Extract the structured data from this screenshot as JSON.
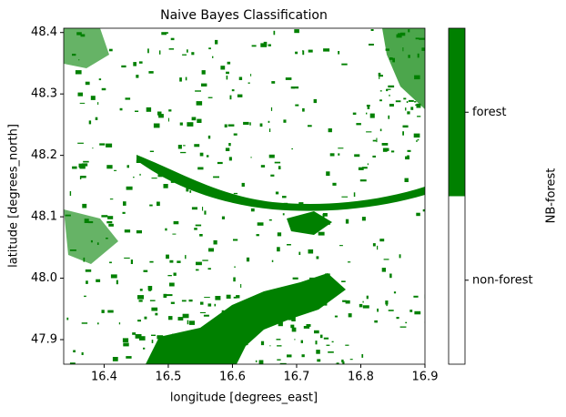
{
  "chart_data": {
    "type": "raster",
    "title": "Naive Bayes Classification",
    "x_label": "longitude [degrees_east]",
    "y_label": "latitude [degrees_north]",
    "xlim": [
      16.337,
      16.9
    ],
    "ylim": [
      47.86,
      48.407
    ],
    "xticks": [
      16.4,
      16.5,
      16.6,
      16.7,
      16.8,
      16.9
    ],
    "yticks": [
      47.9,
      {
        "value": 48.0,
        "label": "48.0"
      },
      48.1,
      48.2,
      48.3,
      48.4
    ],
    "colorbar": {
      "label": "NB-forest",
      "categories": [
        "non-forest",
        "forest"
      ],
      "colors": [
        "#ffffff",
        "#008000"
      ]
    }
  }
}
